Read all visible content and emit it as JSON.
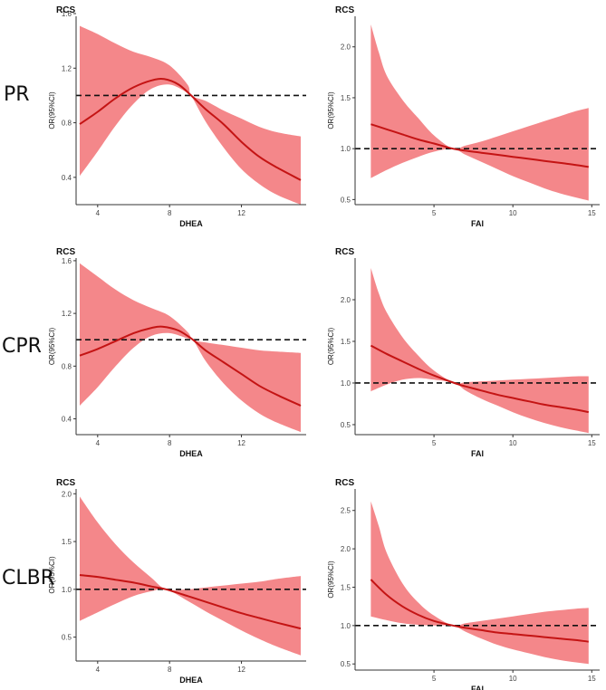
{
  "row_labels": [
    "PR",
    "CPR",
    "CLBR"
  ],
  "colors": {
    "band": "#f4878a",
    "line": "#c41414",
    "ref": "#111111",
    "axis": "#333333",
    "text": "#111111"
  },
  "chart_data": [
    {
      "type": "line",
      "title": "RCS",
      "row": "PR",
      "xlabel": "DHEA",
      "ylabel": "OR(95%CI)",
      "xlim": [
        2.8,
        15.6
      ],
      "ylim": [
        0.2,
        1.58
      ],
      "xticks": [
        4,
        8,
        12
      ],
      "yticks": [
        0.4,
        0.8,
        1.2,
        1.6
      ],
      "reference_line": 1.0,
      "series": [
        {
          "name": "OR",
          "x": [
            3,
            4,
            5,
            6,
            7,
            7.7,
            8.5,
            9.2,
            10,
            11,
            12,
            13,
            14,
            15.3
          ],
          "values": [
            0.79,
            0.88,
            0.98,
            1.06,
            1.11,
            1.12,
            1.08,
            1.0,
            0.9,
            0.79,
            0.66,
            0.55,
            0.47,
            0.38
          ]
        },
        {
          "name": "lower",
          "x": [
            3,
            4,
            5,
            6,
            7,
            8,
            9,
            9.2,
            10,
            11,
            12,
            13,
            14,
            15.3
          ],
          "values": [
            0.41,
            0.59,
            0.78,
            0.94,
            1.05,
            1.08,
            1.02,
            1.0,
            0.81,
            0.62,
            0.46,
            0.35,
            0.27,
            0.2
          ]
        },
        {
          "name": "upper",
          "x": [
            3,
            4,
            5,
            6,
            7,
            8,
            9,
            9.2,
            10,
            11,
            12,
            13,
            14,
            15.3
          ],
          "values": [
            1.51,
            1.45,
            1.38,
            1.32,
            1.28,
            1.22,
            1.08,
            1.0,
            0.96,
            0.89,
            0.83,
            0.77,
            0.73,
            0.7
          ]
        }
      ]
    },
    {
      "type": "line",
      "title": "RCS",
      "row": "PR",
      "xlabel": "FAI",
      "ylabel": "OR(95%CI)",
      "xlim": [
        0,
        15.5
      ],
      "ylim": [
        0.45,
        2.3
      ],
      "xticks": [
        5,
        10,
        15
      ],
      "yticks": [
        0.5,
        1.0,
        1.5,
        2.0
      ],
      "reference_line": 1.0,
      "series": [
        {
          "name": "OR",
          "x": [
            1,
            2,
            3,
            4,
            5,
            6.2,
            7,
            8,
            9,
            10,
            11,
            12,
            13,
            14,
            14.8
          ],
          "values": [
            1.24,
            1.19,
            1.14,
            1.09,
            1.05,
            1.0,
            0.98,
            0.96,
            0.94,
            0.92,
            0.9,
            0.88,
            0.86,
            0.84,
            0.82
          ]
        },
        {
          "name": "lower",
          "x": [
            1,
            2,
            3,
            4,
            5,
            6.2,
            7,
            8,
            9,
            10,
            11,
            12,
            13,
            14,
            14.8
          ],
          "values": [
            0.71,
            0.79,
            0.86,
            0.92,
            0.97,
            1.0,
            0.94,
            0.87,
            0.8,
            0.73,
            0.67,
            0.61,
            0.56,
            0.52,
            0.49
          ]
        },
        {
          "name": "upper",
          "x": [
            1,
            1.5,
            2,
            3,
            4,
            5,
            6.2,
            7,
            8,
            9,
            10,
            11,
            12,
            13,
            14,
            14.8
          ],
          "values": [
            2.22,
            1.95,
            1.72,
            1.48,
            1.3,
            1.13,
            1.0,
            1.03,
            1.07,
            1.12,
            1.17,
            1.22,
            1.27,
            1.32,
            1.37,
            1.4
          ]
        }
      ]
    },
    {
      "type": "line",
      "title": "RCS",
      "row": "CPR",
      "xlabel": "DHEA",
      "ylabel": "OR(95%CI)",
      "xlim": [
        2.8,
        15.6
      ],
      "ylim": [
        0.28,
        1.62
      ],
      "xticks": [
        4,
        8,
        12
      ],
      "yticks": [
        0.4,
        0.8,
        1.2,
        1.6
      ],
      "reference_line": 1.0,
      "series": [
        {
          "name": "OR",
          "x": [
            3,
            4,
            5,
            6,
            7,
            7.6,
            8.5,
            9.3,
            10,
            11,
            12,
            13,
            14,
            15.3
          ],
          "values": [
            0.88,
            0.93,
            0.99,
            1.05,
            1.09,
            1.1,
            1.07,
            1.0,
            0.92,
            0.83,
            0.74,
            0.65,
            0.58,
            0.5
          ]
        },
        {
          "name": "lower",
          "x": [
            3,
            4,
            5,
            6,
            7,
            8,
            9,
            9.3,
            10,
            11,
            12,
            13,
            14,
            15.3
          ],
          "values": [
            0.5,
            0.64,
            0.8,
            0.94,
            1.03,
            1.05,
            1.01,
            1.0,
            0.84,
            0.67,
            0.54,
            0.44,
            0.37,
            0.3
          ]
        },
        {
          "name": "upper",
          "x": [
            3,
            4,
            5,
            6,
            7,
            8,
            9,
            9.3,
            10,
            11,
            12,
            13,
            14,
            15.3
          ],
          "values": [
            1.58,
            1.48,
            1.38,
            1.3,
            1.24,
            1.18,
            1.06,
            1.0,
            0.98,
            0.96,
            0.94,
            0.92,
            0.91,
            0.9
          ]
        }
      ]
    },
    {
      "type": "line",
      "title": "RCS",
      "row": "CPR",
      "xlabel": "FAI",
      "ylabel": "OR(95%CI)",
      "xlim": [
        0,
        15.5
      ],
      "ylim": [
        0.38,
        2.5
      ],
      "xticks": [
        5,
        10,
        15
      ],
      "yticks": [
        0.5,
        1.0,
        1.5,
        2.0
      ],
      "reference_line": 1.0,
      "series": [
        {
          "name": "OR",
          "x": [
            1,
            2,
            3,
            4,
            5,
            6.3,
            7,
            8,
            9,
            10,
            11,
            12,
            13,
            14,
            14.8
          ],
          "values": [
            1.45,
            1.35,
            1.26,
            1.17,
            1.09,
            1.0,
            0.96,
            0.91,
            0.86,
            0.82,
            0.78,
            0.74,
            0.71,
            0.68,
            0.65
          ]
        },
        {
          "name": "lower",
          "x": [
            1,
            2,
            3,
            4,
            5,
            6.3,
            7,
            8,
            9,
            10,
            11,
            12,
            13,
            14,
            14.8
          ],
          "values": [
            0.9,
            0.98,
            1.04,
            1.06,
            1.04,
            1.0,
            0.91,
            0.81,
            0.73,
            0.65,
            0.58,
            0.52,
            0.47,
            0.43,
            0.4
          ]
        },
        {
          "name": "upper",
          "x": [
            1,
            1.5,
            2,
            3,
            4,
            5,
            6.3,
            7,
            8,
            9,
            10,
            11,
            12,
            13,
            14,
            14.8
          ],
          "values": [
            2.38,
            2.08,
            1.85,
            1.55,
            1.33,
            1.15,
            1.0,
            1.01,
            1.02,
            1.03,
            1.04,
            1.05,
            1.06,
            1.07,
            1.08,
            1.08
          ]
        }
      ]
    },
    {
      "type": "line",
      "title": "RCS",
      "row": "CLBR",
      "xlabel": "DHEA",
      "ylabel": "OR(95%CI)",
      "xlim": [
        2.8,
        15.6
      ],
      "ylim": [
        0.25,
        2.05
      ],
      "xticks": [
        4,
        8,
        12
      ],
      "yticks": [
        0.5,
        1.0,
        1.5,
        2.0
      ],
      "reference_line": 1.0,
      "series": [
        {
          "name": "OR",
          "x": [
            3,
            4,
            5,
            6,
            7,
            7.8,
            9,
            10,
            11,
            12,
            13,
            14,
            15.3
          ],
          "values": [
            1.15,
            1.13,
            1.1,
            1.07,
            1.03,
            1.0,
            0.93,
            0.87,
            0.81,
            0.75,
            0.7,
            0.65,
            0.59
          ]
        },
        {
          "name": "lower",
          "x": [
            3,
            4,
            5,
            6,
            7,
            7.8,
            9,
            10,
            11,
            12,
            13,
            14,
            15.3
          ],
          "values": [
            0.67,
            0.76,
            0.85,
            0.93,
            0.98,
            1.0,
            0.88,
            0.77,
            0.67,
            0.57,
            0.48,
            0.4,
            0.31
          ]
        },
        {
          "name": "upper",
          "x": [
            3,
            4,
            5,
            6,
            7,
            7.8,
            9,
            10,
            11,
            12,
            13,
            14,
            15.3
          ],
          "values": [
            1.97,
            1.7,
            1.47,
            1.28,
            1.12,
            1.0,
            1.0,
            1.02,
            1.04,
            1.06,
            1.08,
            1.11,
            1.14
          ]
        }
      ]
    },
    {
      "type": "line",
      "title": "RCS",
      "row": "CLBR",
      "xlabel": "FAI",
      "ylabel": "OR(95%CI)",
      "xlim": [
        0,
        15.5
      ],
      "ylim": [
        0.42,
        2.78
      ],
      "xticks": [
        5,
        10,
        15
      ],
      "yticks": [
        0.5,
        1.0,
        1.5,
        2.0,
        2.5
      ],
      "reference_line": 1.0,
      "series": [
        {
          "name": "OR",
          "x": [
            1,
            2,
            3,
            4,
            5,
            6.2,
            7,
            8,
            9,
            10,
            11,
            12,
            13,
            14,
            14.8
          ],
          "values": [
            1.6,
            1.4,
            1.25,
            1.14,
            1.06,
            1.0,
            0.97,
            0.94,
            0.91,
            0.89,
            0.87,
            0.85,
            0.83,
            0.81,
            0.79
          ]
        },
        {
          "name": "lower",
          "x": [
            1,
            2,
            3,
            4,
            5,
            6.2,
            7,
            8,
            9,
            10,
            11,
            12,
            13,
            14,
            14.8
          ],
          "values": [
            1.12,
            1.07,
            1.03,
            1.01,
            1.0,
            1.0,
            0.92,
            0.83,
            0.75,
            0.69,
            0.64,
            0.59,
            0.55,
            0.52,
            0.5
          ]
        },
        {
          "name": "upper",
          "x": [
            1,
            1.5,
            2,
            3,
            4,
            5,
            6.2,
            7,
            8,
            9,
            10,
            11,
            12,
            13,
            14,
            14.8
          ],
          "values": [
            2.62,
            2.3,
            1.95,
            1.55,
            1.3,
            1.13,
            1.0,
            1.03,
            1.06,
            1.09,
            1.12,
            1.15,
            1.18,
            1.2,
            1.22,
            1.23
          ]
        }
      ]
    }
  ]
}
